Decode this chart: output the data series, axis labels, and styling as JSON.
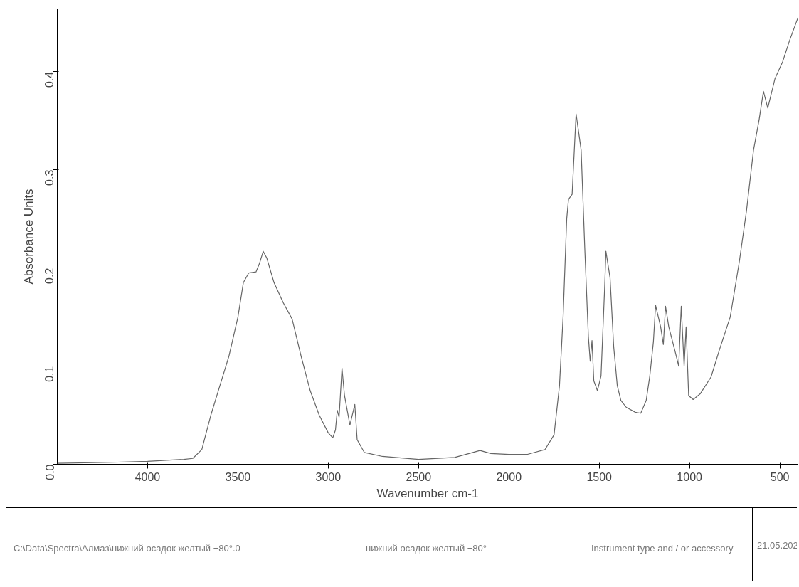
{
  "chart_data": {
    "type": "line",
    "xlabel": "Wavenumber cm-1",
    "ylabel": "Absorbance Units",
    "xlim": [
      4500,
      400
    ],
    "ylim": [
      0,
      0.464
    ],
    "xticks": [
      4000,
      3500,
      3000,
      2500,
      2000,
      1500,
      1000,
      500
    ],
    "yticks": [
      {
        "value": 0,
        "label": "0.0"
      },
      0.1,
      0.2,
      0.3,
      0.4
    ],
    "grid": false,
    "series": [
      {
        "color": "#666666",
        "x": [
          4500,
          4200,
          4000,
          3800,
          3750,
          3700,
          3650,
          3600,
          3550,
          3500,
          3470,
          3440,
          3400,
          3380,
          3360,
          3340,
          3300,
          3250,
          3200,
          3150,
          3100,
          3050,
          3000,
          2975,
          2960,
          2950,
          2940,
          2924,
          2910,
          2880,
          2853,
          2840,
          2800,
          2700,
          2500,
          2300,
          2160,
          2100,
          2000,
          1900,
          1800,
          1750,
          1720,
          1700,
          1680,
          1670,
          1650,
          1628,
          1600,
          1580,
          1560,
          1550,
          1540,
          1530,
          1510,
          1490,
          1470,
          1463,
          1440,
          1420,
          1400,
          1380,
          1350,
          1300,
          1270,
          1240,
          1220,
          1200,
          1188,
          1160,
          1145,
          1133,
          1115,
          1080,
          1060,
          1046,
          1030,
          1019,
          1005,
          980,
          940,
          881,
          834,
          775,
          724,
          685,
          646,
          615,
          591,
          567,
          527,
          485,
          446,
          400
        ],
        "values": [
          0.001,
          0.002,
          0.003,
          0.005,
          0.006,
          0.015,
          0.05,
          0.08,
          0.11,
          0.15,
          0.185,
          0.195,
          0.196,
          0.205,
          0.217,
          0.21,
          0.185,
          0.165,
          0.148,
          0.11,
          0.075,
          0.05,
          0.032,
          0.027,
          0.035,
          0.055,
          0.048,
          0.098,
          0.07,
          0.04,
          0.061,
          0.025,
          0.012,
          0.008,
          0.005,
          0.007,
          0.014,
          0.011,
          0.01,
          0.01,
          0.015,
          0.03,
          0.08,
          0.15,
          0.25,
          0.27,
          0.275,
          0.357,
          0.32,
          0.22,
          0.13,
          0.105,
          0.126,
          0.085,
          0.075,
          0.09,
          0.18,
          0.217,
          0.19,
          0.12,
          0.08,
          0.065,
          0.058,
          0.053,
          0.052,
          0.065,
          0.09,
          0.125,
          0.162,
          0.14,
          0.122,
          0.161,
          0.14,
          0.115,
          0.1,
          0.161,
          0.1,
          0.14,
          0.07,
          0.066,
          0.072,
          0.089,
          0.117,
          0.15,
          0.207,
          0.258,
          0.32,
          0.351,
          0.38,
          0.363,
          0.393,
          0.41,
          0.432,
          0.455
        ]
      }
    ],
    "annotations": [
      "C:\\Data\\Spectra\\Алмаз\\нижний осадок желтый +80°.0",
      "нижний осадок желтый +80°",
      "Instrument type and / or accessory",
      "21.05.202"
    ]
  }
}
